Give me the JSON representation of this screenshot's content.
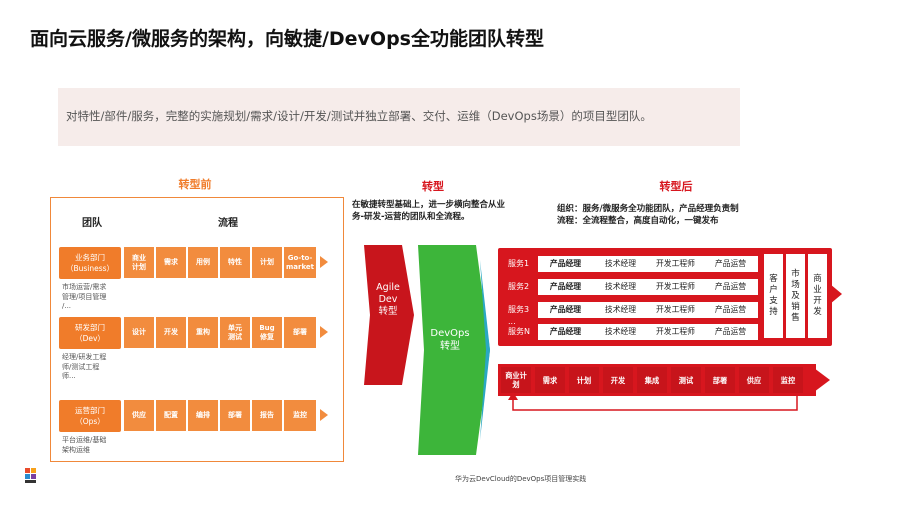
{
  "title": "面向云服务/微服务的架构，向敏捷/DevOps全功能团队转型",
  "banner": "对特性/部件/服务，完整的实施规划/需求/设计/开发/测试并独立部署、交付、运维（DevOps场景）的项目型团队。",
  "before": {
    "title": "转型前",
    "col_team": "团队",
    "col_flow": "流程",
    "depts": [
      {
        "name": "业务部门\n（Business）",
        "desc": "市场运营/需求\n管理/项目管理\n/..."
      },
      {
        "name": "研发部门\n（Dev）",
        "desc": "经理/研发工程\n师/测试工程\n师..."
      },
      {
        "name": "运营部门\n（Ops）",
        "desc": "平台运维/基础\n架构运维"
      }
    ],
    "flows": [
      [
        "商业\n计划",
        "需求",
        "用例",
        "特性",
        "计划",
        "Go-to-\nmarket"
      ],
      [
        "设计",
        "开发",
        "重构",
        "单元\n测试",
        "Bug\n修复",
        "部署"
      ],
      [
        "供应",
        "配置",
        "编排",
        "部署",
        "报告",
        "监控"
      ]
    ]
  },
  "transform": {
    "title": "转型",
    "note": "在敏捷转型基础上，进一步横向整合从业务-研发-运营的团队和全流程。",
    "agile": "Agile\nDev\n转型",
    "devops": "DevOps\n转型"
  },
  "after": {
    "title": "转型后",
    "note1": "组织：服务/微服务全功能团队，产品经理负责制",
    "note2": "流程：全流程整合，高度自动化，一键发布",
    "services": [
      {
        "label": "服务1",
        "roles": [
          "产品经理",
          "技术经理",
          "开发工程师",
          "产品运营"
        ]
      },
      {
        "label": "服务2",
        "roles": [
          "产品经理",
          "技术经理",
          "开发工程师",
          "产品运营"
        ]
      },
      {
        "label": "服务3",
        "roles": [
          "产品经理",
          "技术经理",
          "开发工程师",
          "产品运营"
        ]
      },
      {
        "label": "服务N",
        "roles": [
          "产品经理",
          "技术经理",
          "开发工程师",
          "产品运营"
        ]
      }
    ],
    "ellipsis": "...",
    "side_cols": [
      "客\n户\n支\n持",
      "市\n场\n及\n销\n售",
      "商\n业\n开\n发"
    ],
    "pipeline": [
      "商业计\n划",
      "需求",
      "计划",
      "开发",
      "集成",
      "测试",
      "部署",
      "供应",
      "监控"
    ]
  },
  "footer": "华为云DevCloud的DevOps项目管理实践",
  "colors": {
    "orange": "#f07c2a",
    "red": "#d7161e",
    "green": "#3db53a"
  }
}
